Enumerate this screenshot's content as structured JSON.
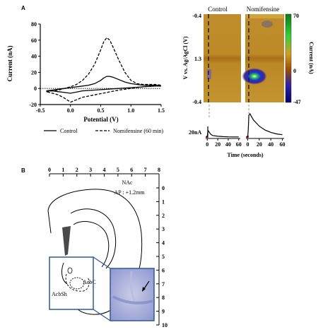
{
  "panel_a": {
    "letter": "A"
  },
  "panel_b": {
    "letter": "B"
  },
  "chart_data": [
    {
      "type": "line",
      "xlabel": "Potential (V)",
      "ylabel": "Current (nA)",
      "xlim": [
        -0.5,
        1.5
      ],
      "ylim": [
        -20,
        80
      ],
      "xticks": [
        "-0.5",
        "0.0",
        "0.5",
        "1.0",
        "1.5"
      ],
      "yticks": [
        "-20",
        "0",
        "20",
        "40",
        "60",
        "80"
      ],
      "legend": "bottom",
      "series": [
        {
          "name": "Control",
          "style": "solid",
          "x": [
            -0.4,
            -0.3,
            -0.2,
            -0.1,
            0.0,
            0.1,
            0.2,
            0.3,
            0.4,
            0.5,
            0.55,
            0.6,
            0.65,
            0.7,
            0.8,
            0.9,
            1.0,
            1.1,
            1.2,
            1.3,
            1.4,
            1.5,
            1.4,
            1.2,
            1.0,
            0.8,
            0.6,
            0.4,
            0.2,
            0.0,
            -0.1,
            -0.2,
            -0.3,
            -0.4
          ],
          "y": [
            -3,
            -2,
            -1,
            0,
            1,
            2,
            3,
            4,
            6,
            10,
            13,
            15,
            15,
            14,
            11,
            8,
            6,
            5,
            4,
            4,
            4,
            3,
            3,
            2,
            1,
            0,
            -1,
            -2,
            -3,
            -6,
            -5,
            -4,
            -3,
            -3
          ]
        },
        {
          "name": "Nomifensine (60 min)",
          "style": "dashed",
          "x": [
            -0.4,
            -0.3,
            -0.2,
            -0.1,
            0.0,
            0.1,
            0.2,
            0.3,
            0.4,
            0.5,
            0.55,
            0.6,
            0.65,
            0.7,
            0.8,
            0.9,
            1.0,
            1.1,
            1.2,
            1.3,
            1.4,
            1.5,
            1.4,
            1.2,
            1.0,
            0.8,
            0.6,
            0.4,
            0.2,
            0.1,
            0.0,
            -0.1,
            -0.2,
            -0.3,
            -0.4
          ],
          "y": [
            -4,
            -3,
            -2,
            0,
            2,
            5,
            10,
            18,
            30,
            48,
            58,
            63,
            60,
            52,
            35,
            20,
            10,
            6,
            5,
            5,
            5,
            4,
            4,
            2,
            0,
            -2,
            -5,
            -8,
            -11,
            -14,
            -17,
            -12,
            -8,
            -6,
            -4
          ]
        }
      ]
    },
    {
      "type": "heatmap",
      "ylabel": "V vs. Ag/AgCl (V)",
      "yticks": [
        "-0.4",
        "1.3",
        "-0.4"
      ],
      "colorbar": {
        "label": "Current (nA)",
        "ticks": [
          "70",
          "0",
          "-47"
        ]
      },
      "panels": [
        "Control",
        "Nomifensine"
      ]
    },
    {
      "type": "line",
      "xlabel": "Time (seconds)",
      "scale_label": "20nA",
      "xticks": [
        "0",
        "20",
        "40",
        "60"
      ],
      "series": [
        {
          "name": "Control",
          "x": [
            -3,
            0,
            1,
            2,
            4,
            6,
            10,
            20,
            30,
            40,
            50,
            60
          ],
          "y": [
            0,
            0,
            6,
            8,
            6,
            4,
            2,
            1,
            0.5,
            0.3,
            0.2,
            0.2
          ]
        },
        {
          "name": "Nomifensine",
          "x": [
            -3,
            0,
            1,
            2,
            4,
            6,
            10,
            20,
            30,
            40,
            50,
            60
          ],
          "y": [
            0,
            0,
            10,
            28,
            30,
            27,
            22,
            14,
            9,
            6,
            4,
            3
          ]
        }
      ]
    }
  ],
  "atlas": {
    "title": "NAc",
    "ap": "AP : +1.2mm",
    "top_ticks": [
      "0",
      "1",
      "2",
      "3",
      "4",
      "5",
      "6",
      "7",
      "8"
    ],
    "right_ticks": [
      "0",
      "1",
      "2",
      "3",
      "4",
      "5",
      "6",
      "7",
      "8",
      "9",
      "10"
    ],
    "labels": {
      "acbc": "AcbC",
      "acbsh": "AcbSh"
    },
    "arrow_icon": "arrow-pointer-icon"
  }
}
